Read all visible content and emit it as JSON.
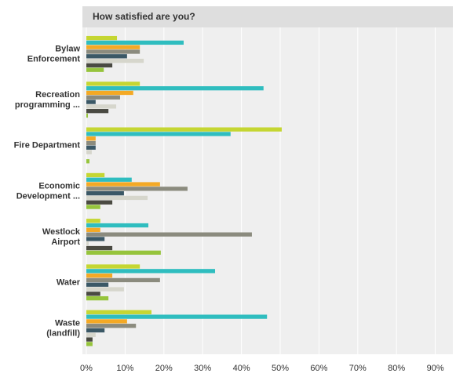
{
  "chart_data": {
    "type": "bar",
    "orientation": "horizontal",
    "title": "How satisfied are you?",
    "categories": [
      "Bylaw\nEnforcement",
      "Recreation\nprogramming ...",
      "Fire Department",
      "Economic\nDevelopment ...",
      "Westlock\nAirport",
      "Water",
      "Waste\n(landfill)"
    ],
    "series": [
      {
        "color": "#c5d632",
        "values": [
          7.9,
          13.8,
          50.4,
          4.7,
          3.6,
          13.8,
          16.8
        ]
      },
      {
        "color": "#2fbdbf",
        "values": [
          25.1,
          45.7,
          37.2,
          11.7,
          16.0,
          33.2,
          46.6
        ]
      },
      {
        "color": "#f4a925",
        "values": [
          13.8,
          12.1,
          2.4,
          19.0,
          3.6,
          6.7,
          10.5
        ]
      },
      {
        "color": "#8b8b7e",
        "values": [
          13.8,
          8.7,
          2.4,
          26.1,
          42.7,
          19.0,
          12.8
        ]
      },
      {
        "color": "#3b5866",
        "values": [
          10.5,
          2.4,
          2.4,
          9.7,
          4.7,
          5.7,
          4.7
        ]
      },
      {
        "color": "#d6d6cc",
        "values": [
          14.8,
          7.7,
          1.4,
          15.8,
          0.6,
          9.7,
          2.4
        ]
      },
      {
        "color": "#4a4a42",
        "values": [
          6.7,
          5.7,
          0,
          6.7,
          6.7,
          3.6,
          1.6
        ]
      },
      {
        "color": "#96c43c",
        "values": [
          4.5,
          0.4,
          0.8,
          3.6,
          19.2,
          5.7,
          1.6
        ]
      }
    ],
    "xlim": [
      0,
      95
    ],
    "xticks": [
      {
        "value": 0,
        "label": "0%"
      },
      {
        "value": 10,
        "label": "10%"
      },
      {
        "value": 20,
        "label": "20%"
      },
      {
        "value": 30,
        "label": "30%"
      },
      {
        "value": 40,
        "label": "40%"
      },
      {
        "value": 50,
        "label": "50%"
      },
      {
        "value": 60,
        "label": "60%"
      },
      {
        "value": 70,
        "label": "70%"
      },
      {
        "value": 80,
        "label": "80%"
      },
      {
        "value": 90,
        "label": "90%"
      }
    ],
    "grid": true
  }
}
